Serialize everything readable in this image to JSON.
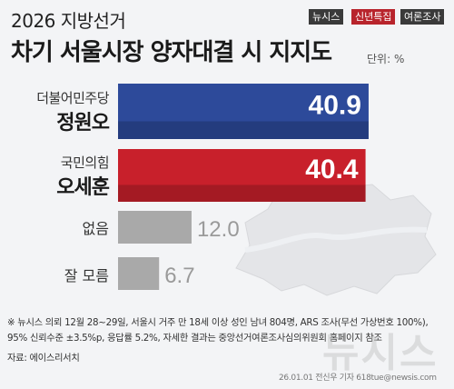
{
  "header": {
    "supertitle": "2026 지방선거",
    "title": "차기 서울시장 양자대결 시 지지도",
    "unit": "단위: %"
  },
  "badges": {
    "newsis": "뉴시스",
    "special": "신년특집",
    "poll": "여론조사"
  },
  "colors": {
    "blue": "#2d4a9a",
    "red": "#c8202b",
    "gray": "#a9a9a9",
    "value_gray": "#9a9a9a",
    "background": "#f3f4f6"
  },
  "chart_data": {
    "type": "bar",
    "orientation": "horizontal",
    "categories": [
      "더불어민주당 정원오",
      "국민의힘 오세훈",
      "없음",
      "잘 모름"
    ],
    "labels": [
      {
        "party": "더불어민주당",
        "name": "정원오"
      },
      {
        "party": "국민의힘",
        "name": "오세훈"
      },
      {
        "party": "",
        "name": "없음"
      },
      {
        "party": "",
        "name": "잘 모름"
      }
    ],
    "values": [
      40.9,
      40.4,
      12.0,
      6.7
    ],
    "value_labels": [
      "40.9",
      "40.4",
      "12.0",
      "6.7"
    ],
    "bar_colors": [
      "#2d4a9a",
      "#c8202b",
      "#a9a9a9",
      "#a9a9a9"
    ],
    "xlim": [
      0,
      41.5
    ],
    "title": "차기 서울시장 양자대결 시지지도",
    "unit": "%"
  },
  "footer": {
    "note_line1": "※ 뉴시스 의뢰 12월 28~29일, 서울시 거주 만 18세 이상 성인 남녀 804명, ARS 조사(무선 가상번호 100%),",
    "note_line2": "95% 신뢰수준 ±3.5%p, 응답률 5.2%, 자세한 결과는 중앙선거여론조사심의위원회 홈페이지 참조",
    "source": "자료: 에이스리서치",
    "credit": "26.01.01 전신우 기자 618tue@newsis.com",
    "watermark": "뉴시스"
  }
}
